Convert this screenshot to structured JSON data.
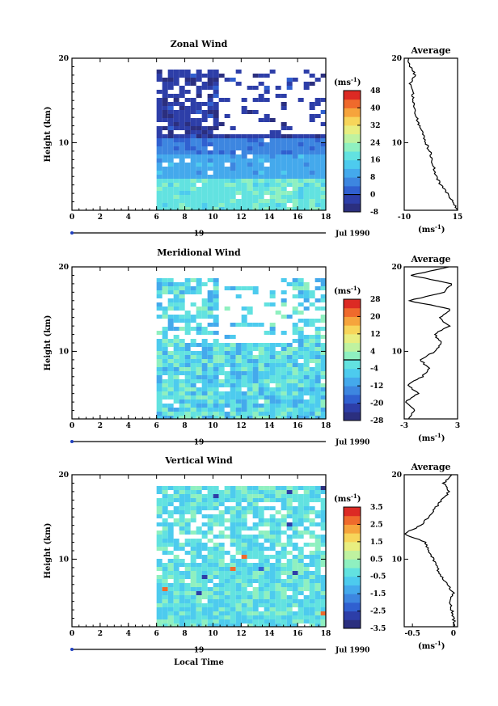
{
  "figure": {
    "xlabel": "Local Time",
    "date_label": "Jul 1990",
    "day_label": "19",
    "ylabel": "Height (km)",
    "unit_label": "(ms",
    "unit_exp": "-1",
    "unit_close": ")",
    "avg_title": "Average"
  },
  "chart_data": [
    {
      "type": "heatmap",
      "title": "Zonal Wind",
      "xlabel": "Local Time",
      "ylabel": "Height (km)",
      "xlim": [
        0,
        18
      ],
      "ylim": [
        2,
        20
      ],
      "xticks": [
        0,
        2,
        4,
        6,
        8,
        10,
        12,
        14,
        16,
        18
      ],
      "yticks": [
        10,
        20
      ],
      "data_start_x": 6,
      "colorbar": {
        "min": -8,
        "max": 48,
        "ticks": [
          -8,
          0,
          8,
          16,
          24,
          32,
          40,
          48
        ],
        "contour": 0
      },
      "profile": {
        "xlim": [
          -10,
          15
        ],
        "xticks": [
          -10,
          15
        ],
        "heights": [
          2,
          3,
          4,
          5,
          6,
          7,
          8,
          9,
          10,
          11,
          12,
          13,
          14,
          15,
          16,
          17,
          18,
          19,
          20
        ],
        "values": [
          15,
          13,
          10,
          7,
          5,
          4,
          3,
          2,
          0,
          -1,
          -3,
          -4,
          -5,
          -6,
          -6,
          -7,
          -5,
          -7,
          -8
        ]
      }
    },
    {
      "type": "heatmap",
      "title": "Meridional Wind",
      "xlabel": "Local Time",
      "ylabel": "Height (km)",
      "xlim": [
        0,
        18
      ],
      "ylim": [
        2,
        20
      ],
      "xticks": [
        0,
        2,
        4,
        6,
        8,
        10,
        12,
        14,
        16,
        18
      ],
      "yticks": [
        10,
        20
      ],
      "data_start_x": 6,
      "colorbar": {
        "min": -28,
        "max": 28,
        "ticks": [
          -28,
          -20,
          -12,
          -4,
          4,
          12,
          20,
          28
        ],
        "contour": 0
      },
      "profile": {
        "xlim": [
          -3,
          3
        ],
        "xticks": [
          -3,
          3
        ],
        "heights": [
          2,
          3,
          4,
          5,
          6,
          7,
          8,
          9,
          10,
          11,
          12,
          13,
          14,
          15,
          16,
          17,
          18,
          19,
          20
        ],
        "values": [
          -2.5,
          -1.8,
          -2.8,
          -1.5,
          -2.6,
          -1.0,
          -0.2,
          -1.2,
          0.5,
          1.2,
          0.4,
          2.0,
          1.0,
          2.2,
          -2.5,
          1.5,
          2.4,
          -2.2,
          2.0
        ]
      }
    },
    {
      "type": "heatmap",
      "title": "Vertical Wind",
      "xlabel": "Local Time",
      "ylabel": "Height (km)",
      "xlim": [
        0,
        18
      ],
      "ylim": [
        2,
        20
      ],
      "xticks": [
        0,
        2,
        4,
        6,
        8,
        10,
        12,
        14,
        16,
        18
      ],
      "yticks": [
        10,
        20
      ],
      "data_start_x": 6,
      "colorbar": {
        "min": -3.5,
        "max": 3.5,
        "ticks": [
          -3.5,
          -2.5,
          -1.5,
          -0.5,
          0.5,
          1.5,
          2.5,
          3.5
        ]
      },
      "profile": {
        "xlim": [
          -0.6,
          0.05
        ],
        "xticks": [
          -0.5,
          0.0
        ],
        "heights": [
          2,
          3,
          4,
          5,
          6,
          7,
          8,
          9,
          10,
          11,
          12,
          13,
          14,
          15,
          16,
          17,
          18,
          19,
          20
        ],
        "values": [
          0.02,
          0.0,
          -0.02,
          -0.05,
          0.0,
          -0.08,
          -0.15,
          -0.2,
          -0.25,
          -0.3,
          -0.35,
          -0.6,
          -0.4,
          -0.3,
          -0.22,
          -0.15,
          -0.05,
          -0.12,
          -0.02
        ]
      }
    }
  ]
}
